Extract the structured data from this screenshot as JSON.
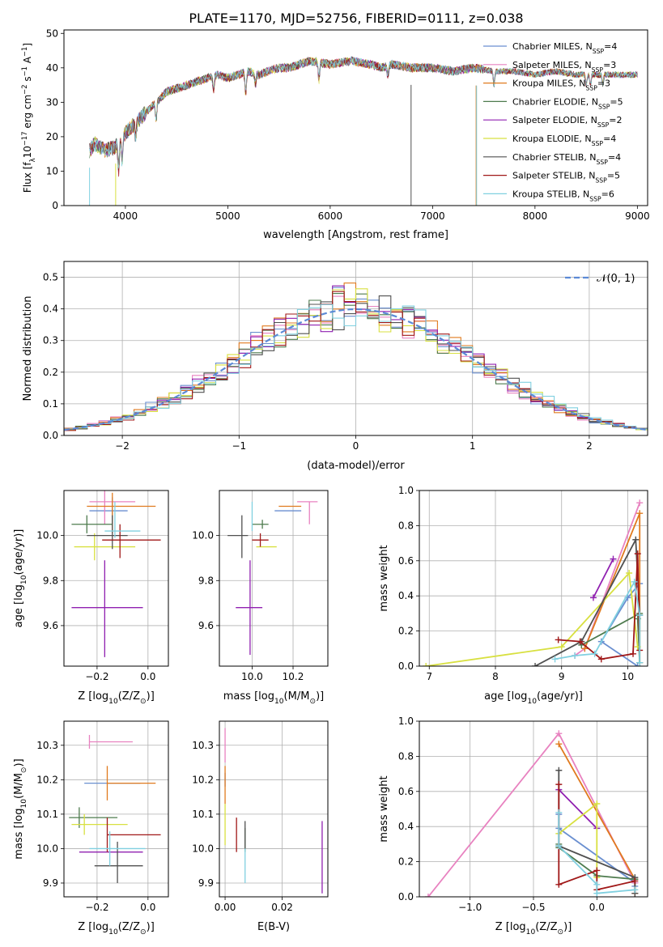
{
  "figure": {
    "title": "PLATE=1170, MJD=52756, FIBERID=0111, z=0.038"
  },
  "colors": [
    "#6a8fd0",
    "#e882c0",
    "#e07a1e",
    "#4e7b4e",
    "#9020b0",
    "#d8e040",
    "#505050",
    "#a01818",
    "#80d0e0"
  ],
  "chart_data": [
    {
      "id": "spectrum",
      "type": "line",
      "title": "PLATE=1170, MJD=52756, FIBERID=0111, z=0.038",
      "xlabel": "wavelength [Angstrom, rest frame]",
      "ylabel": "Flux [f",
      "ylabel_sub": "λ",
      "ylabel_rest": "10",
      "ylabel_sup1": "−17",
      "ylabel_mid": " erg cm",
      "ylabel_sup2": "−2",
      "ylabel_mid2": " s",
      "ylabel_sup3": "−1",
      "ylabel_mid3": " A",
      "ylabel_sup4": "−1",
      "ylabel_end": "]",
      "xlim": [
        3400,
        9100
      ],
      "ylim": [
        0,
        51
      ],
      "xticks": [
        4000,
        5000,
        6000,
        7000,
        8000,
        9000
      ],
      "yticks": [
        0,
        10,
        20,
        30,
        40,
        50
      ],
      "grid": false,
      "legend_position": "upper-right",
      "continuum": {
        "x": [
          3650,
          3700,
          3800,
          3900,
          4000,
          4100,
          4200,
          4300,
          4400,
          4500,
          4600,
          4700,
          4800,
          4900,
          5000,
          5100,
          5200,
          5300,
          5400,
          5500,
          5600,
          5700,
          5800,
          6000,
          6200,
          6400,
          6500,
          6600,
          6800,
          7000,
          7200,
          7400,
          7600,
          7800,
          8000,
          8200,
          8400,
          8600,
          8800,
          9000
        ],
        "y": [
          16,
          18,
          16,
          17,
          21,
          24,
          27,
          30,
          33,
          34,
          35,
          36,
          37,
          38,
          37,
          38,
          39,
          38,
          39,
          40,
          40,
          41,
          42,
          41,
          42,
          41,
          40,
          41,
          40,
          40,
          39,
          40,
          39,
          39,
          38,
          39,
          38,
          38,
          38,
          38
        ]
      },
      "series": [
        {
          "name_main": "Chabrier MILES, N",
          "name_sub": "SSP",
          "name_end": "=4"
        },
        {
          "name_main": "Salpeter MILES, N",
          "name_sub": "SSP",
          "name_end": "=3"
        },
        {
          "name_main": "Kroupa MILES, N",
          "name_sub": "SSP",
          "name_end": "=3"
        },
        {
          "name_main": "Chabrier ELODIE, N",
          "name_sub": "SSP",
          "name_end": "=5"
        },
        {
          "name_main": "Salpeter ELODIE, N",
          "name_sub": "SSP",
          "name_end": "=2"
        },
        {
          "name_main": "Kroupa ELODIE, N",
          "name_sub": "SSP",
          "name_end": "=4"
        },
        {
          "name_main": "Chabrier STELIB, N",
          "name_sub": "SSP",
          "name_end": "=4"
        },
        {
          "name_main": "Salpeter STELIB, N",
          "name_sub": "SSP",
          "name_end": "=5"
        },
        {
          "name_main": "Kroupa STELIB, N",
          "name_sub": "SSP",
          "name_end": "=6"
        }
      ]
    },
    {
      "id": "residuals",
      "type": "histogram",
      "xlabel": "(data-model)/error",
      "ylabel": "Normed distribution",
      "xlim": [
        -2.5,
        2.5
      ],
      "ylim": [
        0,
        0.55
      ],
      "xticks": [
        -2,
        -1,
        0,
        1,
        2
      ],
      "xticklabels": [
        "−2",
        "−1",
        "0",
        "1",
        "2"
      ],
      "yticks": [
        0.0,
        0.1,
        0.2,
        0.3,
        0.4,
        0.5
      ],
      "yticklabels": [
        "0.0",
        "0.1",
        "0.2",
        "0.3",
        "0.4",
        "0.5"
      ],
      "grid": true,
      "legend_position": "upper-right",
      "reference_label": "𝒩(0, 1)",
      "bin_width": 0.1
    },
    {
      "id": "age-vs-Z",
      "type": "errorbar",
      "xlabel": "Z [log",
      "xlabel_sub": "10",
      "xlabel_end": "(Z/Z",
      "xlabel_sub2": "⊙",
      "xlabel_end2": ")]",
      "ylabel": "age  [log",
      "ylabel_sub": "10",
      "ylabel_end": "(age/yr)]",
      "xlim": [
        -0.33,
        0.08
      ],
      "ylim": [
        9.42,
        10.2
      ],
      "xticks": [
        -0.2,
        0.0
      ],
      "xticklabels": [
        "−0.2",
        "0.0"
      ],
      "yticks": [
        9.6,
        9.8,
        10.0
      ],
      "yticklabels": [
        "9.6",
        "9.8",
        "10.0"
      ],
      "grid": true,
      "points": [
        {
          "x": -0.14,
          "y": 10.11,
          "xerr": [
            0.09,
            0.06
          ],
          "yerr": [
            0.06,
            0.06
          ]
        },
        {
          "x": -0.17,
          "y": 10.15,
          "xerr": [
            0.06,
            0.12
          ],
          "yerr": [
            0.1,
            0.06
          ]
        },
        {
          "x": -0.14,
          "y": 10.13,
          "xerr": [
            0.1,
            0.17
          ],
          "yerr": [
            0.12,
            0.06
          ]
        },
        {
          "x": -0.24,
          "y": 10.05,
          "xerr": [
            0.06,
            0.1
          ],
          "yerr": [
            0.04,
            0.04
          ]
        },
        {
          "x": -0.17,
          "y": 9.68,
          "xerr": [
            0.13,
            0.15
          ],
          "yerr": [
            0.22,
            0.21
          ]
        },
        {
          "x": -0.21,
          "y": 9.95,
          "xerr": [
            0.08,
            0.16
          ],
          "yerr": [
            0.06,
            0.06
          ]
        },
        {
          "x": -0.14,
          "y": 10.0,
          "xerr": [
            0.1,
            0.06
          ],
          "yerr": [
            0.06,
            0.09
          ]
        },
        {
          "x": -0.11,
          "y": 9.98,
          "xerr": [
            0.07,
            0.16
          ],
          "yerr": [
            0.08,
            0.07
          ]
        },
        {
          "x": -0.13,
          "y": 10.02,
          "xerr": [
            0.04,
            0.1
          ],
          "yerr": [
            0.03,
            0.13
          ]
        }
      ]
    },
    {
      "id": "age-vs-mass",
      "type": "errorbar",
      "xlabel": "mass [log",
      "xlabel_sub": "10",
      "xlabel_end": "(M/M",
      "xlabel_sub2": "⊙",
      "xlabel_end2": ")]",
      "xlim": [
        9.84,
        10.37
      ],
      "ylim": [
        9.42,
        10.2
      ],
      "xticks": [
        10.0,
        10.2
      ],
      "xticklabels": [
        "10.0",
        "10.2"
      ],
      "yticks": [
        9.6,
        9.8,
        10.0
      ],
      "yticklabels": [
        "9.6",
        "9.8",
        "10.0"
      ],
      "grid": true,
      "points": [
        {
          "x": 10.2,
          "y": 10.11,
          "xerr": [
            0.09,
            0.04
          ],
          "yerr": [
            0.0,
            0.0
          ]
        },
        {
          "x": 10.28,
          "y": 10.15,
          "xerr": [
            0.06,
            0.04
          ],
          "yerr": [
            0.1,
            0.0
          ]
        },
        {
          "x": 10.19,
          "y": 10.13,
          "xerr": [
            0.06,
            0.05
          ],
          "yerr": [
            0.0,
            0.0
          ]
        },
        {
          "x": 10.05,
          "y": 10.05,
          "xerr": [
            0.05,
            0.03
          ],
          "yerr": [
            0.02,
            0.02
          ]
        },
        {
          "x": 9.99,
          "y": 9.68,
          "xerr": [
            0.07,
            0.06
          ],
          "yerr": [
            0.21,
            0.21
          ]
        },
        {
          "x": 10.07,
          "y": 9.95,
          "xerr": [
            0.05,
            0.05
          ],
          "yerr": [
            0.0,
            0.0
          ]
        },
        {
          "x": 9.95,
          "y": 10.0,
          "xerr": [
            0.07,
            0.03
          ],
          "yerr": [
            0.1,
            0.09
          ]
        },
        {
          "x": 10.04,
          "y": 9.98,
          "xerr": [
            0.04,
            0.04
          ],
          "yerr": [
            0.03,
            0.03
          ]
        },
        {
          "x": 10.0,
          "y": 10.02,
          "xerr": [
            0.0,
            0.0
          ],
          "yerr": [
            0.0,
            0.13
          ]
        }
      ]
    },
    {
      "id": "weight-vs-age",
      "type": "line",
      "xlabel": "age  [log",
      "xlabel_sub": "10",
      "xlabel_end": "(age/yr)]",
      "ylabel": "mass weight",
      "xlim": [
        6.85,
        10.3
      ],
      "ylim": [
        0,
        1
      ],
      "xticks": [
        7,
        8,
        9,
        10
      ],
      "xticklabels": [
        "7",
        "8",
        "9",
        "10"
      ],
      "yticks": [
        0.0,
        0.2,
        0.4,
        0.6,
        0.8,
        1.0
      ],
      "yticklabels": [
        "0.0",
        "0.2",
        "0.4",
        "0.6",
        "0.8",
        "1.0"
      ],
      "grid": true,
      "series": [
        {
          "x": [
            10.18,
            10.0,
            9.6,
            10.15
          ],
          "y": [
            0.47,
            0.39,
            0.14,
            0.0
          ]
        },
        {
          "x": [
            9.2,
            9.35,
            10.18
          ],
          "y": [
            0.06,
            0.1,
            0.93
          ]
        },
        {
          "x": [
            9.35,
            10.18,
            10.18
          ],
          "y": [
            0.1,
            0.87,
            0.02
          ]
        },
        {
          "x": [
            9.3,
            10.18,
            10.18,
            10.15
          ],
          "y": [
            0.12,
            0.3,
            0.02,
            0.27
          ]
        },
        {
          "x": [
            9.48,
            9.78
          ],
          "y": [
            0.39,
            0.61
          ]
        },
        {
          "x": [
            6.95,
            9.0,
            10.02,
            10.15
          ],
          "y": [
            0.0,
            0.11,
            0.53,
            0.11
          ]
        },
        {
          "x": [
            8.6,
            9.3,
            10.12,
            10.18
          ],
          "y": [
            0.0,
            0.14,
            0.72,
            0.29
          ]
        },
        {
          "x": [
            8.95,
            9.28,
            9.6,
            10.08,
            10.15,
            10.18
          ],
          "y": [
            0.15,
            0.14,
            0.04,
            0.07,
            0.64,
            0.09
          ]
        },
        {
          "x": [
            8.9,
            9.2,
            9.5,
            10.1,
            10.18,
            10.18
          ],
          "y": [
            0.04,
            0.06,
            0.07,
            0.48,
            0.29,
            0.02
          ]
        }
      ]
    },
    {
      "id": "mass-vs-Z",
      "type": "errorbar",
      "xlabel": "Z [log",
      "xlabel_sub": "10",
      "xlabel_end": "(Z/Z",
      "xlabel_sub2": "⊙",
      "xlabel_end2": ")]",
      "ylabel": "mass [log",
      "ylabel_sub": "10",
      "ylabel_end": "(M/M",
      "ylabel_sub2": "⊙",
      "ylabel_end2": ")]",
      "xlim": [
        -0.33,
        0.08
      ],
      "ylim": [
        9.86,
        10.37
      ],
      "xticks": [
        -0.2,
        0.0
      ],
      "xticklabels": [
        "−0.2",
        "0.0"
      ],
      "yticks": [
        9.9,
        10.0,
        10.1,
        10.2,
        10.3
      ],
      "yticklabels": [
        "9.9",
        "10.0",
        "10.1",
        "10.2",
        "10.3"
      ],
      "grid": true,
      "points": [
        {
          "x": -0.16,
          "y": 10.19,
          "xerr": [
            0.09,
            0.13
          ],
          "yerr": [
            0.0,
            0.0
          ]
        },
        {
          "x": -0.23,
          "y": 10.31,
          "xerr": [
            0.0,
            0.17
          ],
          "yerr": [
            0.02,
            0.02
          ]
        },
        {
          "x": -0.16,
          "y": 10.19,
          "xerr": [
            0.0,
            0.19
          ],
          "yerr": [
            0.05,
            0.05
          ]
        },
        {
          "x": -0.27,
          "y": 10.09,
          "xerr": [
            0.04,
            0.15
          ],
          "yerr": [
            0.03,
            0.03
          ]
        },
        {
          "x": -0.17,
          "y": 9.99,
          "xerr": [
            0.1,
            0.15
          ],
          "yerr": [
            0.0,
            0.0
          ]
        },
        {
          "x": -0.25,
          "y": 10.07,
          "xerr": [
            0.05,
            0.17
          ],
          "yerr": [
            0.03,
            0.03
          ]
        },
        {
          "x": -0.12,
          "y": 9.95,
          "xerr": [
            0.09,
            0.1
          ],
          "yerr": [
            0.05,
            0.07
          ]
        },
        {
          "x": -0.16,
          "y": 10.04,
          "xerr": [
            0.0,
            0.21
          ],
          "yerr": [
            0.05,
            0.05
          ]
        },
        {
          "x": -0.15,
          "y": 10.0,
          "xerr": [
            0.08,
            0.14
          ],
          "yerr": [
            0.05,
            0.05
          ]
        }
      ]
    },
    {
      "id": "mass-vs-EBV",
      "type": "errorbar",
      "xlabel": "E(B-V)",
      "xlim": [
        -0.002,
        0.036
      ],
      "ylim": [
        9.86,
        10.37
      ],
      "xticks": [
        0.0,
        0.02
      ],
      "xticklabels": [
        "0.00",
        "0.02"
      ],
      "yticks": [
        9.9,
        10.0,
        10.1,
        10.2,
        10.3
      ],
      "yticklabels": [
        "9.9",
        "10.0",
        "10.1",
        "10.2",
        "10.3"
      ],
      "grid": true,
      "points": [
        {
          "x": 0.0,
          "y": 10.2,
          "yerr": [
            0.02,
            0.02
          ]
        },
        {
          "x": 0.0,
          "y": 10.3,
          "yerr": [
            0.05,
            0.05
          ]
        },
        {
          "x": 0.0,
          "y": 10.19,
          "yerr": [
            0.06,
            0.05
          ]
        },
        {
          "x": 0.007,
          "y": 10.03,
          "yerr": [
            0.04,
            0.03
          ]
        },
        {
          "x": 0.034,
          "y": 9.97,
          "yerr": [
            0.1,
            0.11
          ]
        },
        {
          "x": 0.0,
          "y": 10.07,
          "yerr": [
            0.06,
            0.06
          ]
        },
        {
          "x": 0.007,
          "y": 10.05,
          "yerr": [
            0.05,
            0.03
          ]
        },
        {
          "x": 0.004,
          "y": 10.04,
          "yerr": [
            0.05,
            0.05
          ]
        },
        {
          "x": 0.007,
          "y": 9.95,
          "yerr": [
            0.05,
            0.05
          ]
        }
      ]
    },
    {
      "id": "weight-vs-Z",
      "type": "line",
      "xlabel": "Z [log",
      "xlabel_sub": "10",
      "xlabel_end": "(Z/Z",
      "xlabel_sub2": "⊙",
      "xlabel_end2": ")]",
      "ylabel": "mass weight",
      "xlim": [
        -1.4,
        0.4
      ],
      "ylim": [
        0,
        1
      ],
      "xticks": [
        -1.0,
        -0.5,
        0.0
      ],
      "xticklabels": [
        "−1.0",
        "−0.5",
        "0.0"
      ],
      "yticks": [
        0.0,
        0.2,
        0.4,
        0.6,
        0.8,
        1.0
      ],
      "yticklabels": [
        "0.0",
        "0.2",
        "0.4",
        "0.6",
        "0.8",
        "1.0"
      ],
      "grid": true,
      "series": [
        {
          "x": [
            -0.3,
            -0.3,
            0.3,
            0.3
          ],
          "y": [
            0.47,
            0.39,
            0.08,
            0.06
          ]
        },
        {
          "x": [
            -1.33,
            -0.3,
            0.3
          ],
          "y": [
            0.0,
            0.93,
            0.08
          ]
        },
        {
          "x": [
            -0.3,
            0.3,
            0.3
          ],
          "y": [
            0.87,
            0.1,
            0.02
          ]
        },
        {
          "x": [
            -0.3,
            -0.3,
            0.0,
            0.3
          ],
          "y": [
            0.3,
            0.28,
            0.12,
            0.1
          ]
        },
        {
          "x": [
            -0.3,
            0.0
          ],
          "y": [
            0.61,
            0.39
          ]
        },
        {
          "x": [
            -0.3,
            0.0,
            0.0
          ],
          "y": [
            0.36,
            0.53,
            0.11
          ]
        },
        {
          "x": [
            -0.3,
            -0.3,
            0.3,
            0.3
          ],
          "y": [
            0.72,
            0.29,
            0.11,
            0.02
          ]
        },
        {
          "x": [
            -0.3,
            -0.3,
            0.0,
            0.0,
            0.3
          ],
          "y": [
            0.64,
            0.07,
            0.15,
            0.04,
            0.09
          ]
        },
        {
          "x": [
            -0.3,
            -0.3,
            0.0,
            0.0,
            0.3
          ],
          "y": [
            0.48,
            0.29,
            0.07,
            0.02,
            0.04
          ]
        }
      ]
    }
  ]
}
